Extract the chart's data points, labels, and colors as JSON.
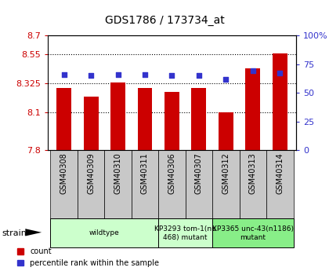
{
  "title": "GDS1786 / 173734_at",
  "samples": [
    "GSM40308",
    "GSM40309",
    "GSM40310",
    "GSM40311",
    "GSM40306",
    "GSM40307",
    "GSM40312",
    "GSM40313",
    "GSM40314"
  ],
  "bar_values": [
    8.285,
    8.22,
    8.33,
    8.285,
    8.255,
    8.285,
    8.095,
    8.44,
    8.555
  ],
  "dot_values_pct": [
    66,
    65,
    66,
    66,
    65,
    65,
    62,
    69,
    67
  ],
  "ylim_left": [
    7.8,
    8.7
  ],
  "ylim_right": [
    0,
    100
  ],
  "yticks_left": [
    7.8,
    8.1,
    8.325,
    8.55,
    8.7
  ],
  "ytick_labels_left": [
    "7.8",
    "8.1",
    "8.325",
    "8.55",
    "8.7"
  ],
  "yticks_right": [
    0,
    25,
    50,
    75,
    100
  ],
  "ytick_labels_right": [
    "0",
    "25",
    "50",
    "75",
    "100%"
  ],
  "hlines": [
    8.55,
    8.325,
    8.1
  ],
  "bar_color": "#cc0000",
  "dot_color": "#3333cc",
  "bar_bottom": 7.8,
  "groups": [
    {
      "label": "wildtype",
      "start": 0,
      "end": 4,
      "color": "#ccffcc"
    },
    {
      "label": "KP3293 tom-1(nu\n468) mutant",
      "start": 4,
      "end": 6,
      "color": "#ccffcc"
    },
    {
      "label": "KP3365 unc-43(n1186)\nmutant",
      "start": 6,
      "end": 9,
      "color": "#88ee88"
    }
  ],
  "legend_count": "count",
  "legend_pct": "percentile rank within the sample",
  "strain_label": "strain",
  "tick_color_left": "#cc0000",
  "tick_color_right": "#3333cc",
  "bg_color": "#ffffff",
  "xtick_bg": "#c8c8c8",
  "title_fontsize": 10
}
